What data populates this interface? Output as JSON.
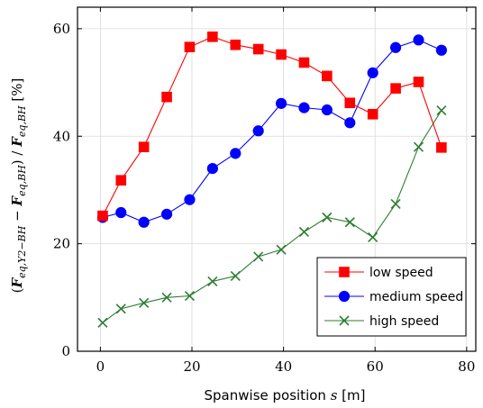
{
  "chart_data": {
    "type": "line",
    "title": "",
    "xlabel": "Spanwise position s [m]",
    "ylabel": "(F_eq,Y2−BH − F_eq,BH) / F_eq,BH [%]",
    "xlim": [
      -5,
      82
    ],
    "ylim": [
      0,
      64
    ],
    "xticks": [
      0,
      20,
      40,
      60,
      80
    ],
    "yticks": [
      0,
      20,
      40,
      60
    ],
    "grid": true,
    "legend_position": "bottom-right",
    "series": [
      {
        "name": "low speed",
        "color": "#ff0000",
        "marker": "square",
        "x": [
          0.5,
          4.5,
          9.5,
          14.5,
          19.5,
          24.5,
          29.5,
          34.5,
          39.5,
          44.5,
          49.5,
          54.5,
          59.5,
          64.5,
          69.5,
          74.5
        ],
        "values": [
          25.2,
          31.8,
          38.0,
          47.3,
          56.6,
          58.5,
          57.0,
          56.2,
          55.2,
          53.7,
          51.2,
          46.2,
          44.1,
          48.9,
          50.1,
          37.9
        ]
      },
      {
        "name": "medium speed",
        "color": "#0000ff",
        "marker": "circle",
        "x": [
          0.5,
          4.5,
          9.5,
          14.5,
          19.5,
          24.5,
          29.5,
          34.5,
          39.5,
          44.5,
          49.5,
          54.5,
          59.5,
          64.5,
          69.5,
          74.5
        ],
        "values": [
          24.9,
          25.8,
          24.0,
          25.5,
          28.2,
          34.0,
          36.8,
          41.0,
          46.1,
          45.3,
          44.9,
          42.5,
          51.8,
          56.5,
          57.9,
          56.0
        ]
      },
      {
        "name": "high speed",
        "color": "#2e7d32",
        "marker": "x",
        "x": [
          0.5,
          4.5,
          9.5,
          14.5,
          19.5,
          24.5,
          29.5,
          34.5,
          39.5,
          44.5,
          49.5,
          54.5,
          59.5,
          64.5,
          69.5,
          74.5
        ],
        "values": [
          5.3,
          7.9,
          9.0,
          10.0,
          10.3,
          13.0,
          14.0,
          17.6,
          18.9,
          22.2,
          24.9,
          24.0,
          21.2,
          27.4,
          38.0,
          44.8
        ]
      }
    ]
  }
}
